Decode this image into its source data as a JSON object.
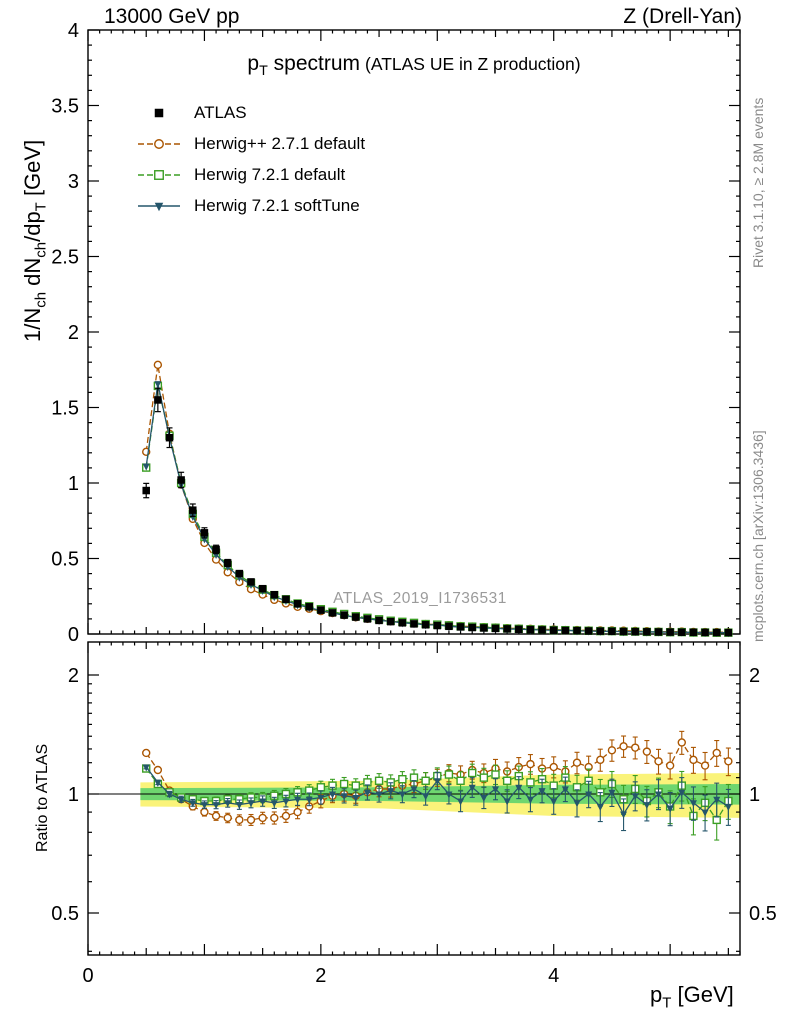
{
  "header": {
    "left": "13000 GeV pp",
    "right": "Z (Drell-Yan)"
  },
  "title": {
    "main_segments": [
      {
        "t": "p"
      },
      {
        "t": "T",
        "sub": true
      },
      {
        "t": " spectrum"
      }
    ],
    "paren": "(ATLAS UE in Z production)"
  },
  "watermark": "ATLAS_2019_I1736531",
  "side_notes": {
    "top": "Rivet 3.1.10, ≥ 2.8M events",
    "bottom": "mcplots.cern.ch [arXiv:1306.3436]"
  },
  "axes": {
    "x": {
      "label_segments": [
        {
          "t": "p"
        },
        {
          "t": "T",
          "sub": true
        },
        {
          "t": " [GeV]"
        }
      ],
      "min": 0,
      "max": 5.6,
      "tick_values": [
        0,
        2,
        4
      ],
      "tick_labels": [
        "0",
        "2",
        "4"
      ]
    },
    "y_top": {
      "label_segments": [
        {
          "t": "1/N"
        },
        {
          "t": "ch",
          "sub": true
        },
        {
          "t": " dN"
        },
        {
          "t": "ch",
          "sub": true
        },
        {
          "t": "/dp"
        },
        {
          "t": "T",
          "sub": true
        },
        {
          "t": " [GeV]"
        }
      ],
      "min": 0,
      "max": 4,
      "tick_values": [
        0,
        0.5,
        1,
        1.5,
        2,
        2.5,
        3,
        3.5,
        4
      ],
      "tick_labels": [
        "0",
        "0.5",
        "1",
        "1.5",
        "2",
        "2.5",
        "3",
        "3.5",
        "4"
      ]
    },
    "y_ratio": {
      "label": "Ratio to ATLAS",
      "scale": "log",
      "min": 0.4,
      "max": 2.42,
      "tick_values": [
        0.5,
        1,
        2
      ],
      "tick_labels": [
        "0.5",
        "1",
        "2"
      ]
    }
  },
  "chart_data": {
    "type": "line",
    "title": "p_T spectrum (ATLAS UE in Z production)",
    "x_label": "p_T [GeV]",
    "x": [
      0.5,
      0.6,
      0.7,
      0.8,
      0.9,
      1.0,
      1.1,
      1.2,
      1.3,
      1.4,
      1.5,
      1.6,
      1.7,
      1.8,
      1.9,
      2.0,
      2.1,
      2.2,
      2.3,
      2.4,
      2.5,
      2.6,
      2.7,
      2.8,
      2.9,
      3.0,
      3.1,
      3.2,
      3.3,
      3.4,
      3.5,
      3.6,
      3.7,
      3.8,
      3.9,
      4.0,
      4.1,
      4.2,
      4.3,
      4.4,
      4.5,
      4.6,
      4.7,
      4.8,
      4.9,
      5.0,
      5.1,
      5.2,
      5.3,
      5.4,
      5.5
    ],
    "panels": [
      {
        "name": "spectrum",
        "y_label": "1/N_ch dN_ch/dp_T [GeV]",
        "ylim": [
          0,
          4
        ],
        "yscale": "linear"
      },
      {
        "name": "ratio",
        "y_label": "Ratio to ATLAS",
        "ylim": [
          0.4,
          2.42
        ],
        "yscale": "log",
        "bands": [
          {
            "color": "#faf37a",
            "x": [
              0.45,
              2.5,
              4.0,
              5.6
            ],
            "half_width": [
              0.07,
              0.08,
              0.12,
              0.13
            ]
          },
          {
            "color": "#6fd66f",
            "x": [
              0.45,
              2.5,
              4.0,
              5.6
            ],
            "half_width": [
              0.035,
              0.04,
              0.055,
              0.06
            ]
          }
        ]
      }
    ],
    "reference_series": {
      "name": "ATLAS",
      "color": "#000000",
      "marker": "filled-square",
      "line": "none",
      "values": [
        0.95,
        1.55,
        1.3,
        1.02,
        0.82,
        0.67,
        0.56,
        0.47,
        0.4,
        0.345,
        0.3,
        0.26,
        0.23,
        0.2,
        0.18,
        0.158,
        0.14,
        0.125,
        0.112,
        0.1,
        0.09,
        0.082,
        0.074,
        0.067,
        0.061,
        0.056,
        0.051,
        0.047,
        0.043,
        0.04,
        0.037,
        0.034,
        0.031,
        0.029,
        0.027,
        0.025,
        0.023,
        0.022,
        0.02,
        0.019,
        0.018,
        0.0165,
        0.0155,
        0.0145,
        0.0135,
        0.0127,
        0.0119,
        0.0112,
        0.0105,
        0.0099,
        0.0093
      ]
    },
    "mc_series": [
      {
        "name": "Herwig++ 2.7.1 default",
        "color": "#aa5500",
        "marker": "open-circle",
        "line": "dashed",
        "ratio_to_atlas": [
          1.27,
          1.15,
          1.02,
          0.97,
          0.93,
          0.9,
          0.88,
          0.87,
          0.86,
          0.86,
          0.87,
          0.87,
          0.88,
          0.9,
          0.93,
          0.96,
          0.99,
          1.0,
          0.99,
          1.01,
          1.03,
          1.03,
          1.05,
          1.06,
          1.08,
          1.1,
          1.13,
          1.12,
          1.15,
          1.13,
          1.16,
          1.14,
          1.17,
          1.19,
          1.16,
          1.17,
          1.14,
          1.2,
          1.17,
          1.22,
          1.29,
          1.32,
          1.31,
          1.28,
          1.21,
          1.18,
          1.35,
          1.22,
          1.18,
          1.27,
          1.21
        ]
      },
      {
        "name": "Herwig 7.2.1 default",
        "color": "#3b9e23",
        "marker": "open-square",
        "line": "dashed",
        "ratio_to_atlas": [
          1.16,
          1.06,
          1.01,
          0.98,
          0.97,
          0.96,
          0.96,
          0.97,
          0.97,
          0.98,
          0.98,
          0.99,
          1.0,
          1.01,
          1.02,
          1.04,
          1.05,
          1.06,
          1.05,
          1.07,
          1.08,
          1.07,
          1.09,
          1.1,
          1.08,
          1.11,
          1.12,
          1.08,
          1.13,
          1.1,
          1.12,
          1.08,
          1.11,
          1.07,
          1.09,
          1.05,
          1.1,
          1.04,
          1.08,
          1.01,
          1.06,
          0.97,
          1.03,
          0.96,
          1.01,
          0.93,
          1.05,
          0.88,
          0.95,
          0.86,
          0.96
        ]
      },
      {
        "name": "Herwig 7.2.1 softTune",
        "color": "#25566b",
        "marker": "filled-triangle-down",
        "line": "solid",
        "ratio_to_atlas": [
          1.17,
          1.07,
          1.0,
          0.97,
          0.95,
          0.94,
          0.94,
          0.95,
          0.94,
          0.95,
          0.96,
          0.95,
          0.96,
          0.97,
          0.97,
          0.98,
          1.0,
          0.99,
          0.98,
          1.01,
          1.0,
          1.02,
          1.0,
          1.03,
          0.99,
          1.08,
          1.0,
          0.96,
          1.04,
          0.98,
          1.03,
          0.96,
          1.04,
          0.97,
          1.02,
          0.96,
          1.03,
          0.95,
          1.0,
          0.93,
          1.01,
          0.89,
          0.99,
          0.94,
          1.0,
          0.92,
          1.01,
          0.95,
          0.9,
          0.97,
          0.93
        ]
      }
    ]
  }
}
